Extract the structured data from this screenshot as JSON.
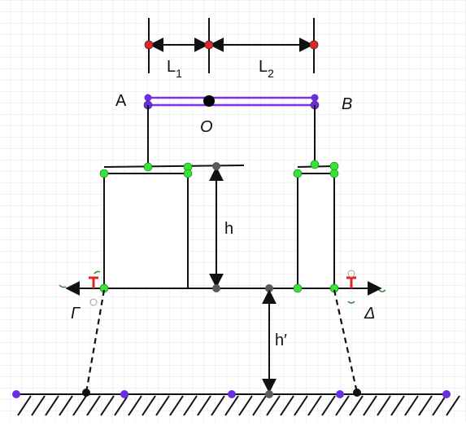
{
  "labels": {
    "A": "A",
    "B": "B",
    "O": "O",
    "L1_main": "L",
    "L1_sub": "1",
    "L2_main": "L",
    "L2_sub": "2",
    "h": "h",
    "h_prime": "h′",
    "Gamma": "Γ",
    "Delta": "Δ"
  },
  "colors": {
    "grid": "#e4e4e4",
    "ink": "#111111",
    "bar": "#7b2ff0",
    "point_purple": "#6a2de0",
    "point_green": "#33e633",
    "point_red": "#e82323",
    "point_gray": "#5a5a5a",
    "support_red": "#e82323"
  },
  "icons": {
    "left_arrow": "arrow-left-icon",
    "right_arrow": "arrow-right-icon",
    "hatching": "ground-hatch-icon"
  }
}
